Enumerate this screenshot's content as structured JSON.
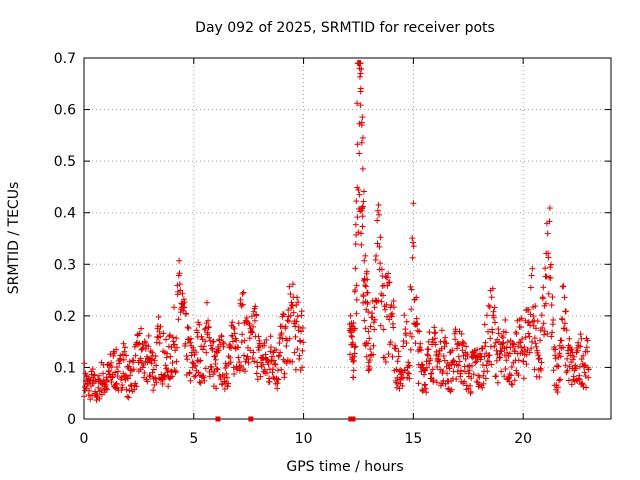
{
  "chart_data": {
    "type": "scatter",
    "title": "Day 092 of 2025, SRMTID for receiver pots",
    "xlabel": "GPS time / hours",
    "ylabel": "SRMTID / TECUs",
    "xlim": [
      0,
      24
    ],
    "ylim": [
      0,
      0.7
    ],
    "xticks": [
      0,
      5,
      10,
      15,
      20
    ],
    "yticks": [
      0,
      0.1,
      0.2,
      0.3,
      0.4,
      0.5,
      0.6,
      0.7
    ],
    "xtick_labels": [
      "0",
      "5",
      "10",
      "15",
      "20"
    ],
    "ytick_labels": [
      "0",
      "0.1",
      "0.2",
      "0.3",
      "0.4",
      "0.5",
      "0.6",
      "0.7"
    ],
    "grid": true,
    "marker": "+",
    "color": "#e00000",
    "series": [
      {
        "name": "SRMTID",
        "segments": [
          {
            "x": [
              0.0,
              0.2,
              0.4,
              0.6,
              0.8,
              1.0,
              1.2,
              1.4,
              1.6,
              1.8,
              2.0,
              2.2,
              2.4,
              2.6,
              2.8,
              3.0,
              3.2,
              3.4,
              3.6,
              3.8,
              4.0,
              4.2,
              4.4,
              4.6,
              4.8,
              5.0,
              5.2,
              5.4,
              5.6,
              5.8,
              6.0,
              6.2,
              6.4,
              6.6,
              6.8,
              7.0,
              7.2,
              7.4,
              7.6,
              7.8,
              8.0,
              8.2,
              8.4,
              8.6,
              8.8,
              9.0,
              9.2,
              9.4,
              9.6,
              9.8
            ],
            "y": [
              0.08,
              0.06,
              0.07,
              0.05,
              0.08,
              0.07,
              0.09,
              0.1,
              0.08,
              0.12,
              0.07,
              0.09,
              0.11,
              0.13,
              0.1,
              0.12,
              0.09,
              0.14,
              0.12,
              0.1,
              0.13,
              0.17,
              0.24,
              0.15,
              0.12,
              0.1,
              0.14,
              0.11,
              0.16,
              0.13,
              0.09,
              0.12,
              0.1,
              0.11,
              0.14,
              0.16,
              0.18,
              0.15,
              0.13,
              0.17,
              0.11,
              0.12,
              0.1,
              0.14,
              0.09,
              0.15,
              0.13,
              0.2,
              0.17,
              0.16
            ]
          },
          {
            "x": [
              12.1,
              12.2,
              12.3,
              12.4,
              12.5,
              12.6,
              12.7,
              12.8,
              12.9,
              13.0,
              13.2,
              13.4,
              13.6,
              13.8,
              14.0,
              14.2,
              14.4,
              14.6,
              14.8,
              15.0,
              15.2,
              15.4,
              15.6,
              15.8,
              16.0,
              16.2,
              16.4,
              16.6,
              16.8,
              17.0,
              17.2,
              17.4,
              17.6,
              17.8,
              18.0,
              18.2,
              18.4,
              18.6,
              18.8,
              19.0,
              19.2,
              19.4,
              19.6,
              19.8,
              20.0,
              20.2,
              20.4,
              20.6,
              20.8,
              21.0,
              21.2,
              21.4,
              21.6,
              21.8,
              22.0,
              22.2,
              22.4,
              22.6,
              22.8
            ],
            "y": [
              0.22,
              0.12,
              0.15,
              0.3,
              0.68,
              0.55,
              0.36,
              0.25,
              0.2,
              0.15,
              0.18,
              0.3,
              0.22,
              0.19,
              0.25,
              0.11,
              0.08,
              0.15,
              0.12,
              0.3,
              0.13,
              0.1,
              0.09,
              0.14,
              0.12,
              0.11,
              0.13,
              0.09,
              0.1,
              0.14,
              0.12,
              0.1,
              0.08,
              0.11,
              0.09,
              0.12,
              0.15,
              0.19,
              0.13,
              0.11,
              0.14,
              0.12,
              0.1,
              0.15,
              0.13,
              0.17,
              0.22,
              0.14,
              0.12,
              0.24,
              0.3,
              0.11,
              0.09,
              0.2,
              0.13,
              0.1,
              0.09,
              0.12,
              0.11
            ]
          }
        ]
      }
    ],
    "peak_points": {
      "x": [
        12.55,
        12.6,
        12.6,
        12.65,
        12.65,
        12.7,
        12.7,
        12.55
      ],
      "y": [
        0.68,
        0.67,
        0.635,
        0.575,
        0.57,
        0.545,
        0.485,
        0.435
      ]
    },
    "zero_markers": {
      "x": [
        6.1,
        7.6,
        12.15,
        12.25
      ],
      "y": [
        0,
        0,
        0,
        0
      ]
    }
  }
}
